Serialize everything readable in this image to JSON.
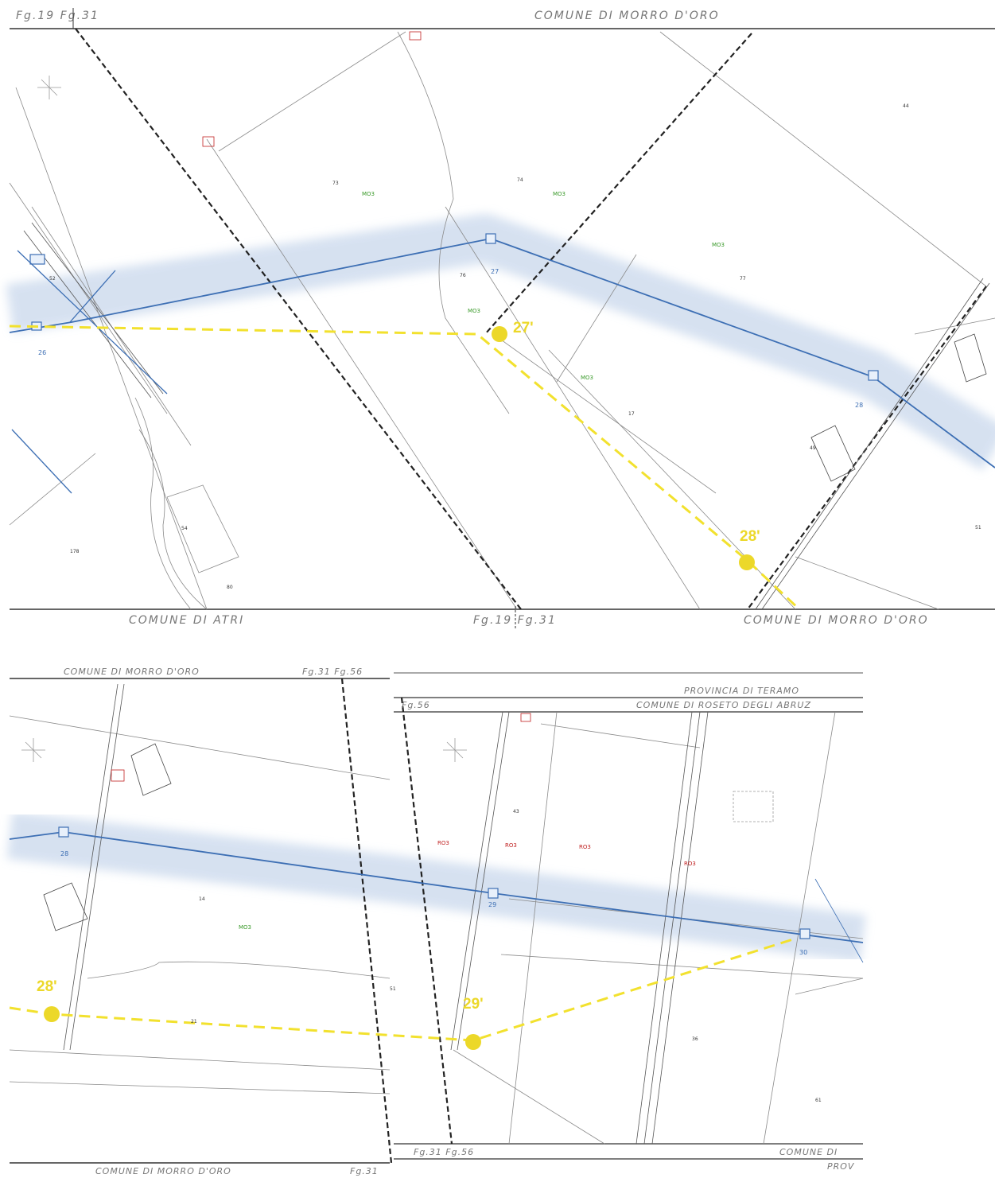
{
  "colors": {
    "existing_line": "#3d6fb4",
    "corridor": "#c9d8ec",
    "proposed_line": "#f2e12e",
    "proposed_pole": "#ecd829",
    "boundary": "#222222",
    "parcel": "#888888",
    "green_tag": "#3a9a2a",
    "red_tag": "#c02020"
  },
  "sheet_top": {
    "header_left": "Fg.19 Fg.31",
    "header_right": "COMUNE DI MORRO D'ORO",
    "footer_left": "COMUNE DI ATRI",
    "footer_mid": "Fg.19 Fg.31",
    "footer_right": "COMUNE DI MORRO D'ORO",
    "poles": [
      {
        "label": "27'"
      },
      {
        "label": "28'"
      }
    ],
    "towers": [
      {
        "label": "26"
      },
      {
        "label": "27"
      },
      {
        "label": "28"
      }
    ],
    "tags": [
      "MO3",
      "MO3",
      "MO3",
      "MO3",
      "MO3"
    ],
    "lots": [
      "52",
      "73",
      "74",
      "76",
      "77",
      "17",
      "44",
      "49",
      "54",
      "178",
      "80",
      "51"
    ]
  },
  "sheet_bottom": {
    "header_left": "COMUNE DI MORRO D'ORO",
    "header_mid": "Fg.31 Fg.56",
    "header_prov": "PROVINCIA DI TERAMO",
    "header_sheet": "Fg.56",
    "header_comune": "COMUNE DI ROSETO DEGLI ABRUZ",
    "footer_left": "COMUNE DI MORRO D'ORO",
    "footer_left_fg": "Fg.31",
    "footer_mid": "Fg.31 Fg.56",
    "footer_right": "COMUNE DI",
    "footer_right_sub": "PROV",
    "poles": [
      {
        "label": "28'"
      },
      {
        "label": "29'"
      }
    ],
    "towers": [
      {
        "label": "28"
      },
      {
        "label": "29"
      },
      {
        "label": "30"
      }
    ],
    "tags_green": [
      "MO3"
    ],
    "tags_red": [
      "RO3",
      "RO3",
      "RO3",
      "RO3"
    ],
    "lots": [
      "14",
      "21",
      "43",
      "51",
      "36",
      "61"
    ]
  }
}
